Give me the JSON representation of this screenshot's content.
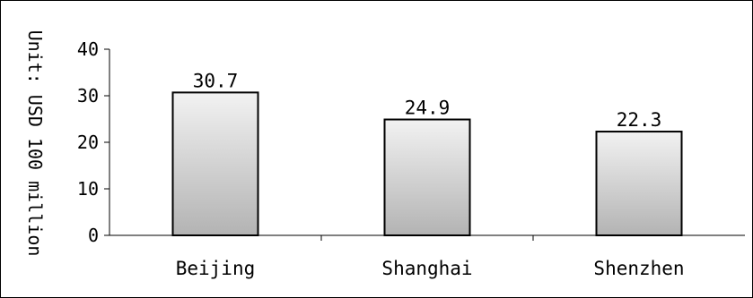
{
  "chart_data": {
    "type": "bar",
    "categories": [
      "Beijing",
      "Shanghai",
      "Shenzhen"
    ],
    "values": [
      30.7,
      24.9,
      22.3
    ],
    "data_labels": [
      "30.7",
      "24.9",
      "22.3"
    ],
    "title": "",
    "xlabel": "",
    "ylabel": "Unit: USD 100 million",
    "ylim": [
      0,
      40
    ],
    "yticks": [
      0,
      10,
      20,
      30,
      40
    ],
    "grid": false,
    "bar_fill_top": "#f2f2f2",
    "bar_fill_bottom": "#b3b3b3",
    "bar_stroke": "#000000"
  }
}
